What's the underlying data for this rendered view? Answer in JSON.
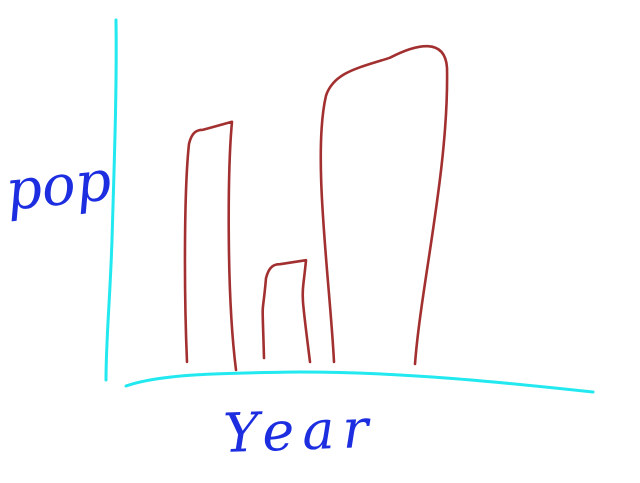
{
  "chart_data": {
    "type": "bar",
    "categories": [
      "",
      "",
      ""
    ],
    "values": [
      7,
      3,
      9.2
    ],
    "xlabel": "Year",
    "ylabel": "pop",
    "ylim": [
      0,
      10
    ],
    "grid": false,
    "legend": "none",
    "style": "hand-drawn sketch, outlined bars, no tick labels"
  },
  "colors": {
    "axes": "#22e8ef",
    "bars": "#a33030",
    "labels": "#1c2ee0",
    "background": "#ffffff"
  }
}
